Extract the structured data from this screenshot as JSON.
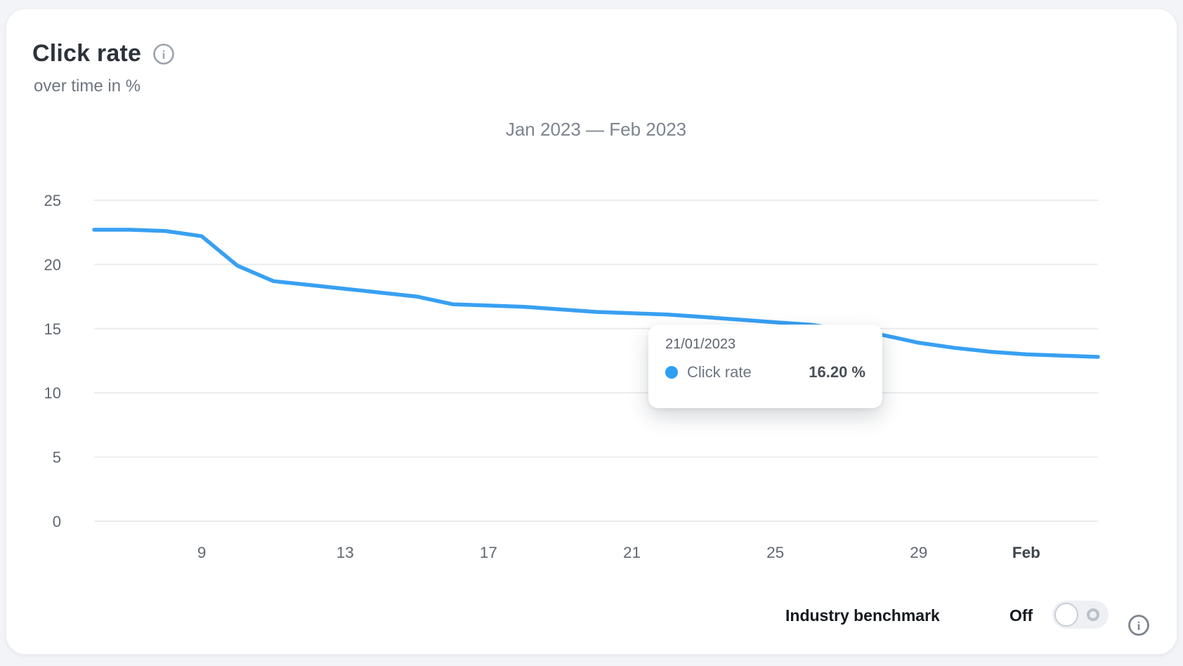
{
  "card": {
    "title": "Click rate",
    "subtitle": "over time in %",
    "range_title": "Jan 2023 — Feb 2023"
  },
  "tooltip": {
    "date": "21/01/2023",
    "series_label": "Click rate",
    "value": "16.20 %"
  },
  "benchmark": {
    "label": "Industry benchmark",
    "state_label": "Off",
    "enabled": false
  },
  "icons": {
    "title_info": "info-icon",
    "benchmark_info": "info-icon",
    "glyph": "i"
  },
  "colors": {
    "line": "#38a0f2",
    "tooltip_dot": "#2f9ff2",
    "gridline": "#e9ebee",
    "axis_label": "#5f6771",
    "axis_label_bold": "#3c434c",
    "card_bg": "#ffffff",
    "page_bg": "#f3f4f7"
  },
  "chart_data": {
    "type": "line",
    "title": "Jan 2023 — Feb 2023",
    "ylabel": "Click rate over time in %",
    "ylim": [
      0,
      25
    ],
    "grid": true,
    "legend_position": "none",
    "x": [
      "06/01",
      "07/01",
      "08/01",
      "09/01",
      "10/01",
      "11/01",
      "12/01",
      "13/01",
      "14/01",
      "15/01",
      "16/01",
      "17/01",
      "18/01",
      "19/01",
      "20/01",
      "21/01",
      "22/01",
      "23/01",
      "24/01",
      "25/01",
      "26/01",
      "27/01",
      "28/01",
      "29/01",
      "30/01",
      "31/01",
      "01/02",
      "02/02",
      "03/02"
    ],
    "series": [
      {
        "name": "Click rate",
        "values": [
          22.7,
          22.7,
          22.6,
          22.2,
          19.9,
          18.7,
          18.4,
          18.1,
          17.8,
          17.5,
          16.9,
          16.8,
          16.7,
          16.5,
          16.3,
          16.2,
          16.1,
          15.9,
          15.7,
          15.5,
          15.3,
          14.9,
          14.5,
          13.9,
          13.5,
          13.2,
          13.0,
          12.9,
          12.8
        ]
      }
    ],
    "yticks": [
      0,
      5,
      10,
      15,
      20,
      25
    ],
    "xticks": [
      {
        "label": "9",
        "index": 3,
        "bold": false
      },
      {
        "label": "13",
        "index": 7,
        "bold": false
      },
      {
        "label": "17",
        "index": 11,
        "bold": false
      },
      {
        "label": "21",
        "index": 15,
        "bold": false
      },
      {
        "label": "25",
        "index": 19,
        "bold": false
      },
      {
        "label": "29",
        "index": 23,
        "bold": false
      },
      {
        "label": "Feb",
        "index": 26,
        "bold": true
      }
    ]
  }
}
